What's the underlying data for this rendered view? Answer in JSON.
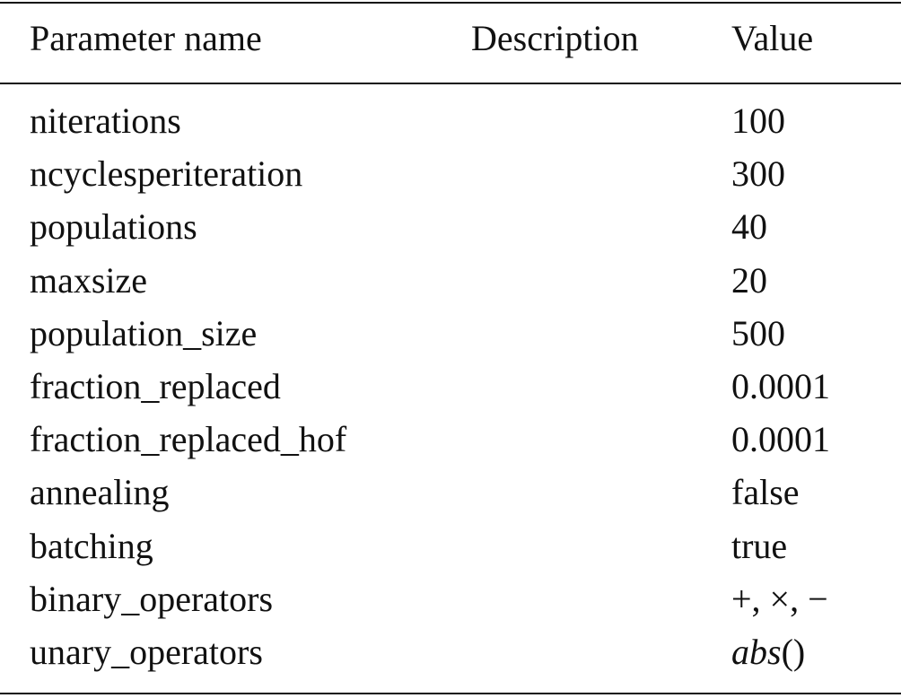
{
  "table": {
    "header": [
      "Parameter name",
      "Description",
      "Value"
    ],
    "rows": [
      {
        "name": "niterations",
        "value": "100"
      },
      {
        "name": "ncyclesperiteration",
        "value": "300"
      },
      {
        "name": "populations",
        "value": "40"
      },
      {
        "name": "maxsize",
        "value": "20"
      },
      {
        "name": "population_size",
        "value": "500"
      },
      {
        "name": "fraction_replaced",
        "value": "0.0001"
      },
      {
        "name": "fraction_replaced_hof",
        "value": "0.0001"
      },
      {
        "name": "annealing",
        "value": "false"
      },
      {
        "name": "batching",
        "value": "true"
      },
      {
        "name": "binary_operators",
        "value": "+, ×, −"
      },
      {
        "name": "unary_operators",
        "value": {
          "italic": "abs",
          "text": "()"
        }
      }
    ]
  }
}
